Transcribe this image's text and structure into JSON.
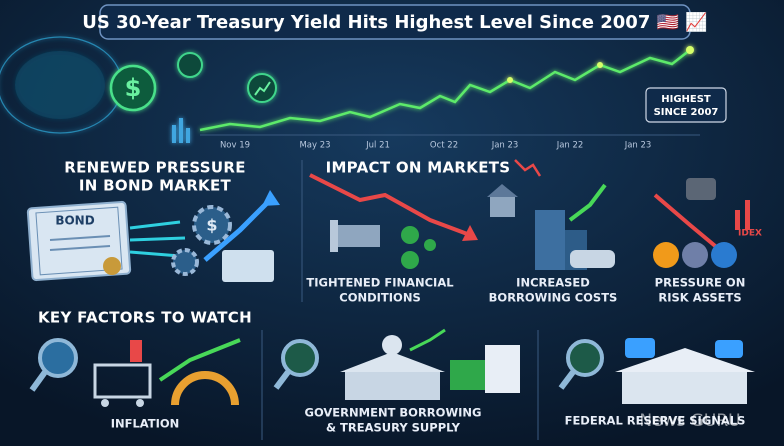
{
  "header": {
    "title": "US 30-Year Treasury Yield Hits Highest Level Since 2007 🇺🇸 📈",
    "timeline_labels": [
      "Nov 19",
      "May 23",
      "Jul 21",
      "Oct 22",
      "Jan 23",
      "Jan 22",
      "Jan 23"
    ],
    "badge": [
      "HIGHEST",
      "SINCE 2007"
    ]
  },
  "bond_market": {
    "title": [
      "RENEWED PRESSURE",
      "IN BOND MARKET"
    ],
    "document_label": "BOND"
  },
  "impact": {
    "title": "IMPACT ON MARKETS",
    "items": [
      {
        "label": [
          "TIGHTENED FINANCIAL",
          "CONDITIONS"
        ]
      },
      {
        "label": [
          "INCREASED",
          "BORROWING COSTS"
        ]
      },
      {
        "label": [
          "PRESSURE ON",
          "RISK ASSETS"
        ]
      }
    ],
    "chart_label": "IDEX"
  },
  "factors": {
    "title": "KEY FACTORS TO WATCH",
    "items": [
      {
        "label": [
          "INFLATION"
        ]
      },
      {
        "label": [
          "GOVERNMENT BORROWING",
          "& TREASURY SUPPLY"
        ]
      },
      {
        "label": [
          "FEDERAL RESERVE SIGNALS"
        ]
      }
    ]
  },
  "watermark": "News GURU"
}
